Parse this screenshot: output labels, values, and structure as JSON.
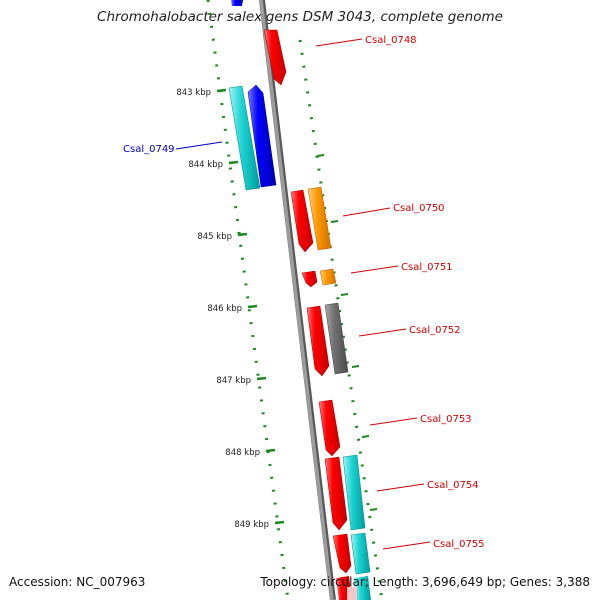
{
  "title": "Chromohalobacter salexigens DSM 3043, complete genome",
  "footer": {
    "accession": "Accession: NC_007963",
    "summary": "Topology: circular; Length: 3,696,649 bp; Genes: 3,388"
  },
  "ticks": [
    {
      "label": "843 kbp"
    },
    {
      "label": "844 kbp"
    },
    {
      "label": "845 kbp"
    },
    {
      "label": "846 kbp"
    },
    {
      "label": "847 kbp"
    },
    {
      "label": "848 kbp"
    },
    {
      "label": "849 kbp"
    }
  ],
  "gene_labels": [
    {
      "text": "Csal_0748",
      "color": "#d40000"
    },
    {
      "text": "Csal_0749",
      "color": "#0000c8"
    },
    {
      "text": "Csal_0750",
      "color": "#d40000"
    },
    {
      "text": "Csal_0751",
      "color": "#d40000"
    },
    {
      "text": "Csal_0752",
      "color": "#d40000"
    },
    {
      "text": "Csal_0753",
      "color": "#d40000"
    },
    {
      "text": "Csal_0754",
      "color": "#d40000"
    },
    {
      "text": "Csal_0755",
      "color": "#d40000"
    }
  ],
  "colors": {
    "backbone": "#8c8c8c",
    "dotted_guides": "#1a8a1a",
    "forward_gene": "#ff0000",
    "reverse_gene": "#0000ff",
    "cyan_feature": "#00cccc",
    "orange_feature": "#ff9900",
    "gray_feature": "#707070"
  }
}
